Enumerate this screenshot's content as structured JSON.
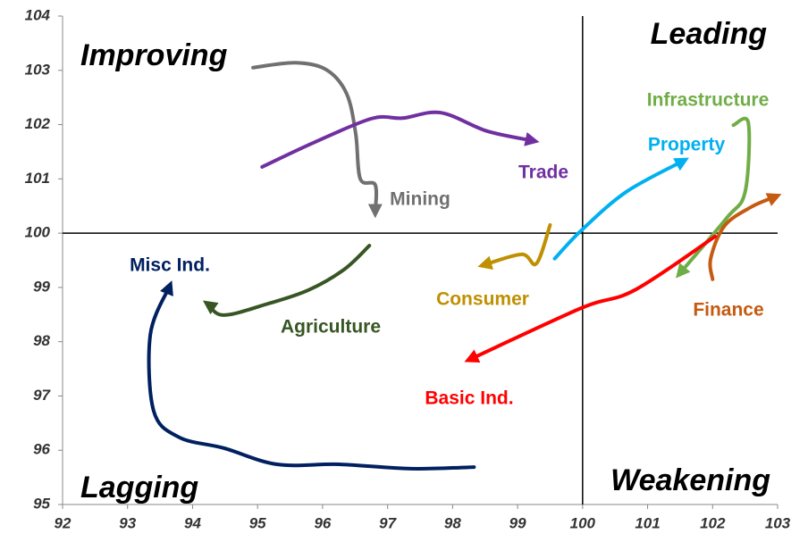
{
  "chart_data": {
    "type": "line",
    "xlim": [
      92,
      103
    ],
    "ylim": [
      95,
      104
    ],
    "xticks": [
      92,
      93,
      94,
      95,
      96,
      97,
      98,
      99,
      100,
      101,
      102,
      103
    ],
    "yticks": [
      95,
      96,
      97,
      98,
      99,
      100,
      101,
      102,
      103,
      104
    ],
    "annotations": [
      "Improving",
      "Leading",
      "Lagging",
      "Weakening"
    ],
    "series": [
      {
        "name": "Mining",
        "color": "#707070",
        "x": [
          94.93,
          95.58,
          96.06,
          96.37,
          96.51,
          96.58,
          96.81,
          96.81
        ],
        "values": [
          103.05,
          103.14,
          103.01,
          102.57,
          101.83,
          101.0,
          100.89,
          100.38
        ]
      },
      {
        "name": "Trade",
        "color": "#7030a0",
        "x": [
          95.07,
          95.85,
          96.75,
          97.23,
          97.82,
          98.53,
          99.25
        ],
        "values": [
          101.22,
          101.66,
          102.11,
          102.12,
          102.22,
          101.88,
          101.7
        ]
      },
      {
        "name": "Infrastructure",
        "color": "#70ad47",
        "x": [
          102.32,
          102.55,
          102.5,
          102.21,
          101.49
        ],
        "values": [
          101.99,
          102.03,
          100.76,
          100.27,
          99.25
        ]
      },
      {
        "name": "Property",
        "color": "#00b0f0",
        "x": [
          99.57,
          99.98,
          100.67,
          101.56
        ],
        "values": [
          99.53,
          100.05,
          100.76,
          101.34
        ]
      },
      {
        "name": "Finance",
        "color": "#c55a11",
        "x": [
          102.0,
          101.97,
          102.18,
          102.59,
          102.98
        ],
        "values": [
          99.15,
          99.53,
          100.13,
          100.48,
          100.68
        ]
      },
      {
        "name": "Consumer",
        "color": "#bf9000",
        "x": [
          99.5,
          99.29,
          99.06,
          98.47
        ],
        "values": [
          100.15,
          99.44,
          99.61,
          99.41
        ]
      },
      {
        "name": "Basic Ind.",
        "color": "#ff0000",
        "x": [
          102.04,
          100.8,
          99.98,
          98.26
        ],
        "values": [
          99.94,
          98.95,
          98.62,
          97.67
        ]
      },
      {
        "name": "Agriculture",
        "color": "#375623",
        "x": [
          96.72,
          96.33,
          95.78,
          95.16,
          94.48,
          94.23
        ],
        "values": [
          99.77,
          99.33,
          98.95,
          98.7,
          98.49,
          98.7
        ]
      },
      {
        "name": "Misc Ind.",
        "color": "#002060",
        "x": [
          98.33,
          97.36,
          96.26,
          95.3,
          94.48,
          93.79,
          93.4,
          93.35,
          93.65
        ],
        "values": [
          95.69,
          95.66,
          95.74,
          95.74,
          96.04,
          96.24,
          96.73,
          98.13,
          99.03
        ]
      }
    ]
  }
}
